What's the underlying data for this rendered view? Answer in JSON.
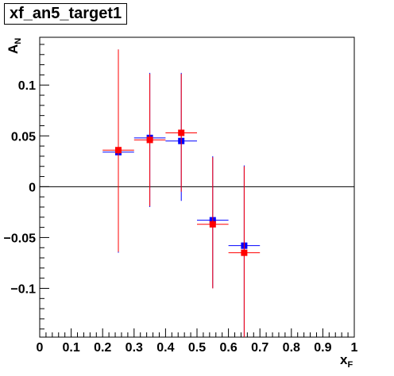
{
  "chart_data": {
    "type": "scatter",
    "title": "xf_an5_target1",
    "xlabel": "x",
    "xlabel_sub": "F",
    "ylabel": "A",
    "ylabel_sub": "N",
    "xlim": [
      0,
      1
    ],
    "ylim": [
      -0.148,
      0.147
    ],
    "x_ticks": [
      0,
      0.1,
      0.2,
      0.3,
      0.4,
      0.5,
      0.6,
      0.7,
      0.8,
      0.9,
      1
    ],
    "x_tick_labels": [
      "0",
      "0.1",
      "0.2",
      "0.3",
      "0.4",
      "0.5",
      "0.6",
      "0.7",
      "0.8",
      "0.9",
      "1"
    ],
    "y_ticks": [
      -0.1,
      -0.05,
      0,
      0.05,
      0.1
    ],
    "y_tick_labels": [
      "−0.1",
      "−0.05",
      "0",
      "0.05",
      "0.1"
    ],
    "zero_line": true,
    "series": [
      {
        "color": "#0000ff",
        "points": [
          {
            "x": 0.25,
            "y": 0.034,
            "xerr": 0.05,
            "ylow": -0.065,
            "yhigh": 0.135
          },
          {
            "x": 0.35,
            "y": 0.048,
            "xerr": 0.05,
            "ylow": -0.02,
            "yhigh": 0.112
          },
          {
            "x": 0.45,
            "y": 0.045,
            "xerr": 0.05,
            "ylow": -0.014,
            "yhigh": 0.112
          },
          {
            "x": 0.55,
            "y": -0.033,
            "xerr": 0.05,
            "ylow": -0.1,
            "yhigh": 0.03
          },
          {
            "x": 0.65,
            "y": -0.058,
            "xerr": 0.05,
            "ylow": -0.148,
            "yhigh": 0.021
          }
        ]
      },
      {
        "color": "#ff0000",
        "points": [
          {
            "x": 0.25,
            "y": 0.036,
            "xerr": 0.05,
            "ylow": -0.064,
            "yhigh": 0.135
          },
          {
            "x": 0.35,
            "y": 0.046,
            "xerr": 0.05,
            "ylow": -0.019,
            "yhigh": 0.111
          },
          {
            "x": 0.45,
            "y": 0.053,
            "xerr": 0.05,
            "ylow": -0.005,
            "yhigh": 0.111
          },
          {
            "x": 0.55,
            "y": -0.037,
            "xerr": 0.05,
            "ylow": -0.1,
            "yhigh": 0.029
          },
          {
            "x": 0.65,
            "y": -0.065,
            "xerr": 0.05,
            "ylow": -0.148,
            "yhigh": 0.02
          }
        ]
      }
    ]
  }
}
